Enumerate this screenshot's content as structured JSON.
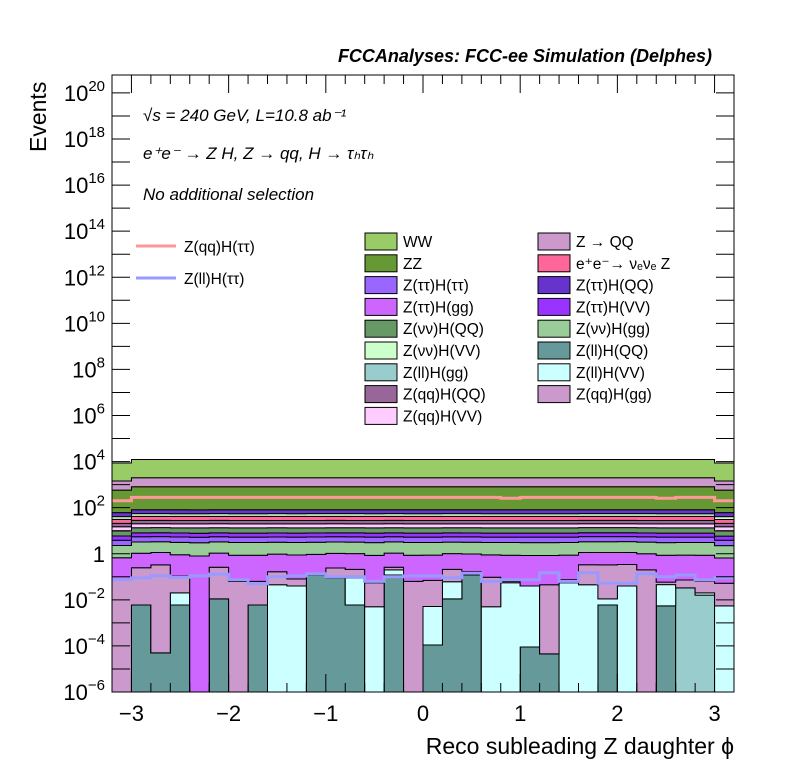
{
  "chart_data": {
    "type": "bar",
    "stacked": true,
    "title": "FCCAnalyses: FCC-ee Simulation (Delphes)",
    "xlabel": "Reco subleading Z daughter ϕ",
    "ylabel": "Events",
    "xlim": [
      -3.2,
      3.2
    ],
    "nbins": 32,
    "ylog": true,
    "ylim": [
      1e-06,
      6e+20
    ],
    "x_tick_labels": [
      "−3",
      "−2",
      "−1",
      "0",
      "1",
      "2",
      "3"
    ],
    "x_tick_values": [
      -3,
      -2,
      -1,
      0,
      1,
      2,
      3
    ],
    "y_tick_labels": [
      {
        "base": "10",
        "exp": "−6",
        "log": -6
      },
      {
        "base": "10",
        "exp": "−4",
        "log": -4
      },
      {
        "base": "10",
        "exp": "−2",
        "log": -2
      },
      {
        "base": "1",
        "exp": "",
        "log": 0
      },
      {
        "base": "10",
        "exp": "2",
        "log": 2
      },
      {
        "base": "10",
        "exp": "4",
        "log": 4
      },
      {
        "base": "10",
        "exp": "6",
        "log": 6
      },
      {
        "base": "10",
        "exp": "8",
        "log": 8
      },
      {
        "base": "10",
        "exp": "10",
        "log": 10
      },
      {
        "base": "10",
        "exp": "12",
        "log": 12
      },
      {
        "base": "10",
        "exp": "14",
        "log": 14
      },
      {
        "base": "10",
        "exp": "16",
        "log": 16
      },
      {
        "base": "10",
        "exp": "18",
        "log": 18
      },
      {
        "base": "10",
        "exp": "20",
        "log": 20
      }
    ],
    "annotations": [
      "√s = 240 GeV, L=10.8 ab⁻¹",
      "e⁺e⁻ → Z H, Z → qq, H → τₕτₕ",
      "No additional selection"
    ],
    "legend_lines": [
      {
        "label": "Z(qq)H(ττ)",
        "color": "#ff9999"
      },
      {
        "label": "Z(ll)H(ττ)",
        "color": "#9999ff"
      }
    ],
    "legend": [
      {
        "key": "WW",
        "label": "WW",
        "color": "#99cc66"
      },
      {
        "key": "ZQQ",
        "label": "Z → QQ",
        "color": "#cc99cc"
      },
      {
        "key": "ZZ",
        "label": "ZZ",
        "color": "#669933"
      },
      {
        "key": "eevvZ",
        "label": "e⁺e⁻→ νₑνₑ Z",
        "color": "#ff6699"
      },
      {
        "key": "ttHtt",
        "label": "Z(ττ)H(ττ)",
        "color": "#9966ff"
      },
      {
        "key": "ttHQQ",
        "label": "Z(ττ)H(QQ)",
        "color": "#6633cc"
      },
      {
        "key": "ttHgg",
        "label": "Z(ττ)H(gg)",
        "color": "#cc66ff"
      },
      {
        "key": "ttHVV",
        "label": "Z(ττ)H(VV)",
        "color": "#9933ff"
      },
      {
        "key": "vvHQQ",
        "label": "Z(νν)H(QQ)",
        "color": "#669966"
      },
      {
        "key": "vvHgg",
        "label": "Z(νν)H(gg)",
        "color": "#99cc99"
      },
      {
        "key": "vvHVV",
        "label": "Z(νν)H(VV)",
        "color": "#ccffcc"
      },
      {
        "key": "llHQQ",
        "label": "Z(ll)H(QQ)",
        "color": "#669999"
      },
      {
        "key": "llHgg",
        "label": "Z(ll)H(gg)",
        "color": "#99cccc"
      },
      {
        "key": "llHVV",
        "label": "Z(ll)H(VV)",
        "color": "#ccffff"
      },
      {
        "key": "qqHQQ",
        "label": "Z(qq)H(QQ)",
        "color": "#996699"
      },
      {
        "key": "qqHgg",
        "label": "Z(qq)H(gg)",
        "color": "#cc99cc"
      },
      {
        "key": "qqHVV",
        "label": "Z(qq)H(VV)",
        "color": "#ffccff"
      }
    ],
    "stack_bottom_to_top": [
      {
        "key": "llHQQ",
        "values": [
          0,
          0.006,
          5e-05,
          0.006,
          0,
          0.011,
          0,
          0.006,
          0,
          0,
          0.12,
          0.09,
          0.006,
          0,
          0.12,
          0,
          0.00011,
          0.011,
          0.12,
          0,
          0,
          9e-05,
          4.5e-05,
          0,
          0,
          0.006,
          0,
          0,
          0.0055,
          0,
          0,
          0
        ]
      },
      {
        "key": "llHgg",
        "values": [
          0,
          0,
          0,
          0,
          0,
          0,
          0,
          0,
          0,
          0,
          0,
          0,
          0,
          0,
          0,
          0,
          0,
          0,
          0,
          0,
          0,
          0,
          0,
          0,
          0,
          0,
          0,
          0,
          0,
          0.033,
          0.016,
          0
        ]
      },
      {
        "key": "llHVV",
        "values": [
          0,
          0,
          0,
          0.014,
          0,
          0,
          0,
          0,
          0.045,
          0.04,
          0,
          0,
          0.085,
          0.005,
          0.08,
          0,
          0.005,
          0.05,
          0,
          0.005,
          0.055,
          0.04,
          0,
          0.055,
          0.045,
          0.005,
          0.04,
          0,
          0.04,
          0,
          0.004,
          0.0055
        ]
      },
      {
        "key": "qqHgg",
        "values": [
          0.074,
          0.24,
          0.33,
          0.09,
          0,
          0.25,
          0.063,
          0.057,
          0.12,
          0.04,
          0.02,
          0.15,
          0.12,
          0.05,
          0.06,
          0.063,
          0.065,
          0.15,
          0.05,
          0.09,
          0.008,
          0,
          0.045,
          0.02,
          0.29,
          0.32,
          0.3,
          0.2,
          0.013,
          0.04,
          0.045,
          0.047
        ]
      },
      {
        "key": "ttHgg",
        "value": 0.8,
        "edge_value": 0.6
      },
      {
        "key": "vvHgg",
        "value": 2.2,
        "edge_value": 1.6
      },
      {
        "key": "ttHtt",
        "value": 2.2,
        "edge_value": 1.6
      },
      {
        "key": "ttHVV",
        "value": 2.6,
        "edge_value": 2.0
      },
      {
        "key": "vvHQQ",
        "value": 5.4,
        "edge_value": 4
      },
      {
        "key": "qqHVV",
        "value": 6.5,
        "edge_value": 5
      },
      {
        "key": "qqHQQ",
        "value": 8,
        "edge_value": 6
      },
      {
        "key": "eevvZ",
        "value": 14,
        "edge_value": 10
      },
      {
        "key": "vvHVV",
        "value": 13,
        "edge_value": 10
      },
      {
        "key": "ttHQQ",
        "value": 26,
        "edge_value": 20
      },
      {
        "key": "ZZ",
        "value": 730,
        "edge_value": 520
      },
      {
        "key": "ZQQ",
        "value": 1190,
        "edge_value": 850
      },
      {
        "key": "WW",
        "value": 10300,
        "edge_value": 7300
      }
    ],
    "lines": [
      {
        "label": "Z(qq)H(ττ)",
        "color": "#ff9999",
        "values": [
          200,
          280,
          280,
          280,
          280,
          280,
          280,
          280,
          280,
          280,
          280,
          280,
          280,
          280,
          280,
          280,
          280,
          280,
          280,
          280,
          255,
          280,
          280,
          280,
          280,
          280,
          280,
          280,
          255,
          280,
          280,
          200
        ]
      },
      {
        "label": "Z(ll)H(ττ)",
        "color": "#9999ff",
        "values": [
          0.074,
          0.09,
          0.11,
          0.095,
          0.11,
          0.13,
          0.074,
          0.05,
          0.1,
          0.11,
          0.135,
          0.1,
          0.1,
          0.063,
          0.1,
          0.11,
          0.11,
          0.09,
          0.145,
          0.063,
          0.074,
          0.074,
          0.15,
          0.063,
          0.15,
          0.053,
          0.053,
          0.135,
          0.1,
          0.12,
          0.074,
          0.09
        ]
      }
    ]
  }
}
